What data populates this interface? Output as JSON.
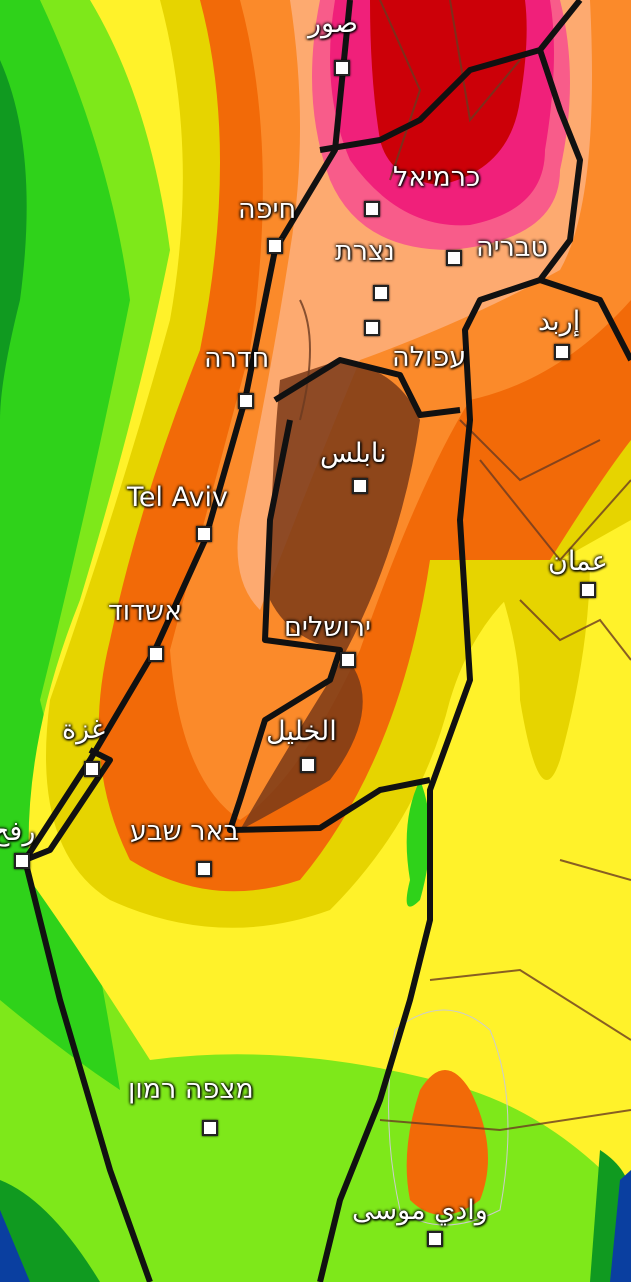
{
  "map": {
    "colors": {
      "deep_blue": "#0a3fa0",
      "dark_green": "#109a20",
      "green": "#2fd21a",
      "lime": "#7ee81a",
      "yellow": "#fff22a",
      "olive_yellow": "#e6d400",
      "orange": "#fb8a2a",
      "dark_orange": "#f26a08",
      "light_orange": "#fdaa70",
      "pink": "#f0207a",
      "red": "#cc0008",
      "brown_terrain": "#7a3a18",
      "border": "#111111"
    },
    "cities": [
      {
        "name": "صور"
      },
      {
        "name": "כרמיאל"
      },
      {
        "name": "חיפה"
      },
      {
        "name": "נצרת"
      },
      {
        "name": "טבריה"
      },
      {
        "name": "עפולה"
      },
      {
        "name": "إربد"
      },
      {
        "name": "חדרה"
      },
      {
        "name": "نابلس"
      },
      {
        "name": "Tel Aviv"
      },
      {
        "name": "عمان"
      },
      {
        "name": "אשדוד"
      },
      {
        "name": "ירושלים"
      },
      {
        "name": "غزة"
      },
      {
        "name": "الخليل"
      },
      {
        "name": "رفح"
      },
      {
        "name": "באר שבע"
      },
      {
        "name": "מצפה רמון"
      },
      {
        "name": "وادي موسى"
      }
    ]
  }
}
